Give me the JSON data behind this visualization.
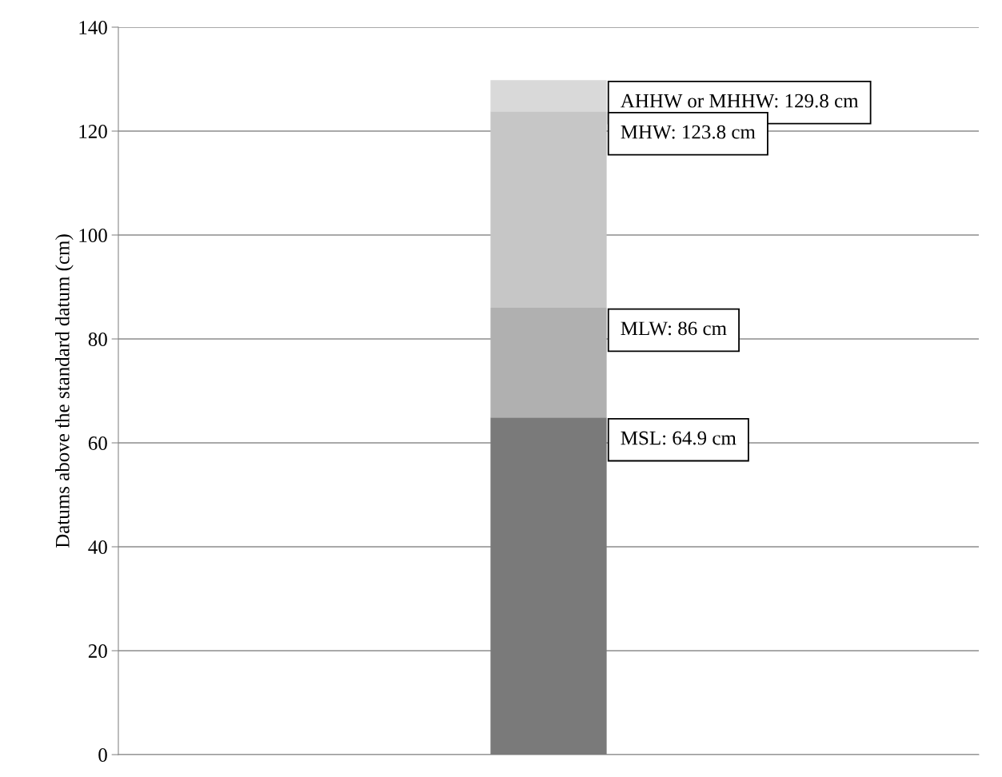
{
  "chart_data": {
    "type": "bar",
    "stacked": true,
    "categories": [
      null
    ],
    "ylabel": "Datums above the standard datum (cm)",
    "series": [
      {
        "color": "#7a7a7a",
        "values": [
          64.9
        ]
      },
      {
        "color": "#b0b0b0",
        "values": [
          21.1
        ]
      },
      {
        "color": "#c6c6c6",
        "values": [
          37.8
        ]
      },
      {
        "color": "#d9d9d9",
        "values": [
          6.0
        ]
      }
    ],
    "annotations": [
      "AHHW or MHHW: 129.8 cm",
      "MHW: 123.8 cm",
      "MLW: 86 cm",
      "MSL: 64.9 cm"
    ],
    "ylim": [
      0,
      140
    ],
    "yticks": [
      0,
      20,
      40,
      60,
      80,
      100,
      120,
      140
    ],
    "grid": "y",
    "legend": false
  }
}
